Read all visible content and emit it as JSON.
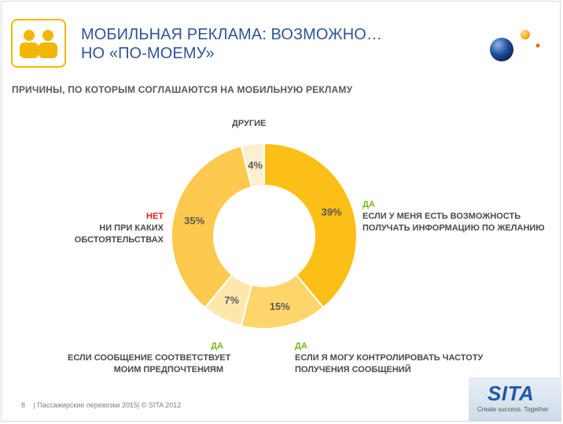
{
  "header": {
    "title_line1": "МОБИЛЬНАЯ РЕКЛАМА: ВОЗМОЖНО…",
    "title_line2": "НО «ПО-МОЕМУ»",
    "icon": "two-people-icon",
    "accent_color": "#f2b705",
    "title_color": "#2f5597"
  },
  "subtitle": "ПРИЧИНЫ, ПО КОТОРЫМ СОГЛАШАЮТСЯ НА МОБИЛЬНУЮ РЕКЛАМУ",
  "chart_data": {
    "type": "pie",
    "donut": true,
    "slices": [
      {
        "tag": "ДА",
        "label_lines": [
          "ЕСЛИ У МЕНЯ ЕСТЬ ВОЗМОЖНОСТЬ",
          "ПОЛУЧАТЬ ИНФОРМАЦИЮ ПО ЖЕЛАНИЮ"
        ],
        "value": 39,
        "value_label": "39%",
        "color": "#fbbf15"
      },
      {
        "tag": "ДА",
        "label_lines": [
          "ЕСЛИ Я МОГУ КОНТРОЛИРОВАТЬ ЧАСТОТУ",
          "ПОЛУЧЕНИЯ СООБЩЕНИЙ"
        ],
        "value": 15,
        "value_label": "15%",
        "color": "#fdd56b"
      },
      {
        "tag": "ДА",
        "label_lines": [
          "ЕСЛИ СООБЩЕНИЕ СООТВЕТСТВУЕТ",
          "МОИМ ПРЕДПОЧТЕНИЯМ"
        ],
        "value": 7,
        "value_label": "7%",
        "color": "#fde7ad"
      },
      {
        "tag": "НЕТ",
        "label_lines": [
          "НИ ПРИ КАКИХ",
          "ОБСТОЯТЕЛЬСТВАХ"
        ],
        "value": 35,
        "value_label": "35%",
        "color": "#fdc94e"
      },
      {
        "tag": "",
        "label_lines": [
          "ДРУГИЕ"
        ],
        "value": 4,
        "value_label": "4%",
        "color": "#fdefcf"
      }
    ],
    "tag_colors": {
      "ДА": "#7ab51d",
      "НЕТ": "#e02020"
    }
  },
  "footer": {
    "page_number": "8",
    "text": "| Пассажирские перевозки 2015|  © SITA 2012"
  },
  "brand": {
    "name": "SITA",
    "tagline": "Create success. Together",
    "color": "#1f5aa6"
  }
}
